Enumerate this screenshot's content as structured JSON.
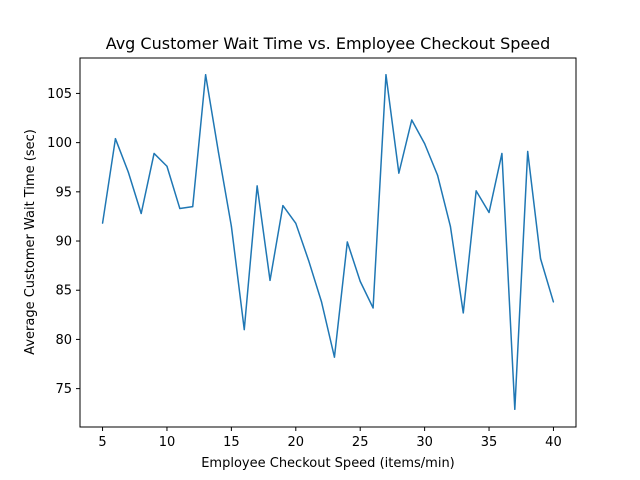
{
  "chart_data": {
    "type": "line",
    "title": "Avg Customer Wait Time vs. Employee Checkout Speed",
    "xlabel": "Employee Checkout Speed (items/min)",
    "ylabel": "Average Customer Wait Time (sec)",
    "xlim": [
      3.25,
      41.75
    ],
    "ylim": [
      71.1,
      108.6
    ],
    "x_ticks": [
      5,
      10,
      15,
      20,
      25,
      30,
      35,
      40
    ],
    "y_ticks": [
      75,
      80,
      85,
      90,
      95,
      100,
      105
    ],
    "grid": false,
    "line_color": "#1f77b4",
    "series": [
      {
        "x": [
          5,
          6,
          7,
          8,
          9,
          10,
          11,
          12,
          13,
          14,
          15,
          16,
          17,
          18,
          19,
          20,
          21,
          22,
          23,
          24,
          25,
          26,
          27,
          28,
          29,
          30,
          31,
          32,
          33,
          34,
          35,
          36,
          37,
          38,
          39,
          40
        ],
        "values": [
          91.8,
          100.4,
          97.0,
          92.8,
          98.9,
          97.6,
          93.3,
          93.5,
          106.9,
          99.0,
          91.5,
          81.0,
          95.6,
          86.0,
          93.6,
          91.8,
          88.0,
          83.8,
          78.2,
          89.9,
          85.9,
          83.2,
          106.9,
          96.9,
          102.3,
          99.9,
          96.7,
          91.5,
          82.7,
          95.1,
          92.9,
          98.9,
          72.9,
          99.1,
          88.2,
          83.8
        ]
      }
    ]
  }
}
